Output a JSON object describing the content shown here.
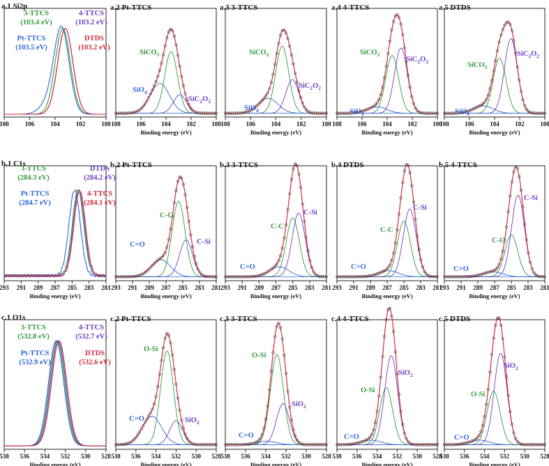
{
  "chart_data": [
    {
      "id": "a1",
      "title": "a.1 Si2p",
      "type": "line",
      "xlabel": "",
      "xlim": [
        108,
        100
      ],
      "ticks": [
        108,
        106,
        104,
        102,
        100
      ],
      "series": [
        {
          "name": "3-TTCS",
          "sub": "(103.4 eV)",
          "peak": 103.4,
          "color": "#2e9b3a"
        },
        {
          "name": "4-TTCS",
          "sub": "(103.2 eV)",
          "peak": 103.2,
          "color": "#6a3fc4"
        },
        {
          "name": "Pt-TTCS",
          "sub": "(103.5 eV)",
          "peak": 103.5,
          "color": "#2b66d6"
        },
        {
          "name": "DTDS",
          "sub": "(103.2 eV)",
          "peak": 103.2,
          "color": "#d12a3c"
        }
      ]
    },
    {
      "id": "a2",
      "title": "a.2 Pt-TTCS",
      "type": "line",
      "xlabel": "Binding energy (eV)",
      "xlim": [
        108,
        100
      ],
      "ticks": [
        108,
        106,
        104,
        102,
        100
      ],
      "series": [
        {
          "name": "SiCO3",
          "label": "SiCO",
          "sub": "3",
          "center": 103.6,
          "height": 0.66,
          "color": "#2e9b3a"
        },
        {
          "name": "SiO4",
          "label": "SiO",
          "sub": "4",
          "center": 104.5,
          "height": 0.32,
          "color": "#2b66d6"
        },
        {
          "name": "SiC2O2",
          "label": "SiC",
          "sub": "2",
          "suf": "O",
          "sub2": "2",
          "center": 102.9,
          "height": 0.2,
          "color": "#6a3fc4"
        }
      ]
    },
    {
      "id": "a3",
      "title": "a.3 3-TTCS",
      "type": "line",
      "xlabel": "Binding energy (eV)",
      "xlim": [
        108,
        100
      ],
      "ticks": [
        108,
        106,
        104,
        102,
        100
      ],
      "series": [
        {
          "name": "SiCO3",
          "label": "SiCO",
          "sub": "3",
          "center": 103.5,
          "height": 0.72,
          "color": "#2e9b3a"
        },
        {
          "name": "SiO4",
          "label": "SiO",
          "sub": "4",
          "center": 104.6,
          "height": 0.16,
          "color": "#2b66d6"
        },
        {
          "name": "SiC2O2",
          "label": "SiC",
          "sub": "2",
          "suf": "O",
          "sub2": "2",
          "center": 102.7,
          "height": 0.36,
          "color": "#6a3fc4"
        }
      ]
    },
    {
      "id": "a4",
      "title": "a.4 4-TTCS",
      "type": "line",
      "xlabel": "Binding energy (eV)",
      "xlim": [
        108,
        100
      ],
      "ticks": [
        108,
        106,
        104,
        102,
        100
      ],
      "series": [
        {
          "name": "SiCO3",
          "label": "SiCO",
          "sub": "3",
          "center": 103.6,
          "height": 0.62,
          "color": "#2e9b3a"
        },
        {
          "name": "SiO4",
          "label": "SiO",
          "sub": "4",
          "center": 104.8,
          "height": 0.07,
          "color": "#2b66d6"
        },
        {
          "name": "SiC2O2",
          "label": "SiC",
          "sub": "2",
          "suf": "O",
          "sub2": "2",
          "center": 102.9,
          "height": 0.7,
          "color": "#6a3fc4"
        }
      ]
    },
    {
      "id": "a5",
      "title": "a.5 DTDS",
      "type": "line",
      "xlabel": "Binding energy (eV)",
      "xlim": [
        108,
        100
      ],
      "ticks": [
        108,
        106,
        104,
        102,
        100
      ],
      "series": [
        {
          "name": "SiCO3",
          "label": "SiCO",
          "sub": "3",
          "center": 103.6,
          "height": 0.59,
          "color": "#2e9b3a"
        },
        {
          "name": "SiO4",
          "label": "SiO",
          "sub": "4",
          "center": 104.9,
          "height": 0.08,
          "color": "#2b66d6"
        },
        {
          "name": "SiC2O2",
          "label": "SiC",
          "sub": "2",
          "suf": "O",
          "sub2": "2",
          "center": 102.7,
          "height": 0.8,
          "color": "#6a3fc4"
        }
      ]
    },
    {
      "id": "b1",
      "title": "b.1 C1s",
      "type": "line",
      "xlabel": "Binding energy (eV)",
      "xlim": [
        293,
        281
      ],
      "ticks": [
        293,
        291,
        289,
        287,
        285,
        283,
        281
      ],
      "series": [
        {
          "name": "3-TTCS",
          "sub": "(284.3 eV)",
          "peak": 284.3,
          "color": "#2e9b3a"
        },
        {
          "name": "DTDS",
          "sub": "(284.2 eV)",
          "peak": 284.2,
          "color": "#6a3fc4"
        },
        {
          "name": "Pt-TTCS",
          "sub": "(284.7 eV)",
          "peak": 284.7,
          "color": "#2b66d6"
        },
        {
          "name": "4-TTCS",
          "sub": "(284.1 eV)",
          "peak": 284.1,
          "color": "#d12a3c"
        }
      ]
    },
    {
      "id": "b2",
      "title": "b.2 Pt-TTCS",
      "type": "line",
      "xlabel": "Binding energy (eV)",
      "xlim": [
        293,
        281
      ],
      "ticks": [
        293,
        291,
        289,
        287,
        285,
        283,
        281
      ],
      "series": [
        {
          "name": "C-C",
          "label": "C-C",
          "center": 285.5,
          "height": 0.76,
          "color": "#2e9b3a"
        },
        {
          "name": "C=O",
          "label": "C=O",
          "center": 287.6,
          "height": 0.17,
          "color": "#2b66d6"
        },
        {
          "name": "C-Si",
          "label": "C-Si",
          "center": 284.6,
          "height": 0.37,
          "color": "#6a3fc4"
        }
      ]
    },
    {
      "id": "b3",
      "title": "b.3 3-TTCS",
      "type": "line",
      "xlabel": "Binding energy (eV)",
      "xlim": [
        293,
        281
      ],
      "ticks": [
        293,
        291,
        289,
        287,
        285,
        283,
        281
      ],
      "series": [
        {
          "name": "C-C",
          "label": "C-C",
          "center": 285.0,
          "height": 0.59,
          "color": "#2e9b3a"
        },
        {
          "name": "C=O",
          "label": "C=O",
          "center": 286.6,
          "height": 0.1,
          "color": "#2b66d6"
        },
        {
          "name": "C-Si",
          "label": "C-Si",
          "center": 284.3,
          "height": 0.64,
          "color": "#6a3fc4"
        }
      ]
    },
    {
      "id": "b4",
      "title": "b.4 DTDS",
      "type": "line",
      "xlabel": "Binding energy (eV)",
      "xlim": [
        293,
        281
      ],
      "ticks": [
        293,
        291,
        289,
        287,
        285,
        283,
        281
      ],
      "series": [
        {
          "name": "C-C",
          "label": "C-C",
          "center": 285.0,
          "height": 0.56,
          "color": "#2e9b3a"
        },
        {
          "name": "C=O",
          "label": "C=O",
          "center": 286.8,
          "height": 0.06,
          "color": "#2b66d6"
        },
        {
          "name": "C-Si",
          "label": "C-Si",
          "center": 284.3,
          "height": 0.68,
          "color": "#6a3fc4"
        }
      ]
    },
    {
      "id": "b5",
      "title": "b.5 4-TTCS",
      "type": "line",
      "xlabel": "Binding energy (eV)",
      "xlim": [
        293,
        281
      ],
      "ticks": [
        293,
        291,
        289,
        287,
        285,
        283,
        281
      ],
      "series": [
        {
          "name": "C-C",
          "label": "C-C",
          "center": 285.0,
          "height": 0.42,
          "color": "#2e9b3a"
        },
        {
          "name": "C=O",
          "label": "C=O",
          "center": 287.2,
          "height": 0.05,
          "color": "#2b66d6"
        },
        {
          "name": "C-Si",
          "label": "C-Si",
          "center": 284.2,
          "height": 0.82,
          "color": "#6a3fc4"
        }
      ]
    },
    {
      "id": "c1",
      "title": "c.1 O1s",
      "type": "line",
      "xlabel": "Binding energy (eV)",
      "xlim": [
        538,
        528
      ],
      "ticks": [
        538,
        536,
        534,
        532,
        530,
        528
      ],
      "series": [
        {
          "name": "3-TTCS",
          "sub": "(532.8 eV)",
          "peak": 532.8,
          "color": "#2e9b3a"
        },
        {
          "name": "4-TTCS",
          "sub": "(532.7 eV)",
          "peak": 532.7,
          "color": "#6a3fc4"
        },
        {
          "name": "Pt-TTCS",
          "sub": "(532.9 eV)",
          "peak": 532.9,
          "color": "#2b66d6"
        },
        {
          "name": "DTDS",
          "sub": "(532.6 eV)",
          "peak": 532.6,
          "color": "#d12a3c"
        }
      ]
    },
    {
      "id": "c2",
      "title": "c.2 Pt-TTCS",
      "type": "line",
      "xlabel": "Binding energy (eV)",
      "xlim": [
        538,
        528
      ],
      "ticks": [
        538,
        536,
        534,
        532,
        530,
        528
      ],
      "series": [
        {
          "name": "O-Si",
          "label": "O-Si",
          "center": 532.9,
          "height": 0.82,
          "color": "#2e9b3a"
        },
        {
          "name": "C=O",
          "label": "C=O",
          "center": 534.4,
          "height": 0.25,
          "color": "#2b66d6"
        },
        {
          "name": "SiO2",
          "label": "SiO",
          "sub": "2",
          "center": 532.0,
          "height": 0.21,
          "color": "#6a3fc4"
        }
      ]
    },
    {
      "id": "c3",
      "title": "c.3 3-TTCS",
      "type": "line",
      "xlabel": "Binding energy (eV)",
      "xlim": [
        538,
        528
      ],
      "ticks": [
        538,
        536,
        534,
        532,
        530,
        528
      ],
      "series": [
        {
          "name": "O-Si",
          "label": "O-Si",
          "center": 532.9,
          "height": 0.79,
          "color": "#2e9b3a"
        },
        {
          "name": "C=O",
          "label": "C=O",
          "center": 533.9,
          "height": 0.03,
          "color": "#2b66d6"
        },
        {
          "name": "SiO2",
          "label": "SiO",
          "sub": "2",
          "center": 532.3,
          "height": 0.36,
          "color": "#6a3fc4"
        }
      ]
    },
    {
      "id": "c4",
      "title": "c.4 4-TTCS",
      "type": "line",
      "xlabel": "Binding energy (eV)",
      "xlim": [
        538,
        528
      ],
      "ticks": [
        538,
        536,
        534,
        532,
        530,
        528
      ],
      "series": [
        {
          "name": "O-Si",
          "label": "O-Si",
          "center": 533.1,
          "height": 0.5,
          "color": "#2e9b3a"
        },
        {
          "name": "C=O",
          "label": "C=O",
          "center": 534.6,
          "height": 0.04,
          "color": "#2b66d6"
        },
        {
          "name": "SiO2",
          "label": "SiO",
          "sub": "2",
          "center": 532.6,
          "height": 0.78,
          "color": "#6a3fc4"
        }
      ]
    },
    {
      "id": "c5",
      "title": "c.5 DTDS",
      "type": "line",
      "xlabel": "Binding energy (eV)",
      "xlim": [
        538,
        528
      ],
      "ticks": [
        538,
        536,
        534,
        532,
        530,
        528
      ],
      "series": [
        {
          "name": "O-Si",
          "label": "O-Si",
          "center": 533.1,
          "height": 0.47,
          "color": "#2e9b3a"
        },
        {
          "name": "C=O",
          "label": "C=O",
          "center": 534.5,
          "height": 0.04,
          "color": "#2b66d6"
        },
        {
          "name": "SiO2",
          "label": "SiO",
          "sub": "2",
          "center": 532.4,
          "height": 0.8,
          "color": "#6a3fc4"
        }
      ]
    }
  ]
}
